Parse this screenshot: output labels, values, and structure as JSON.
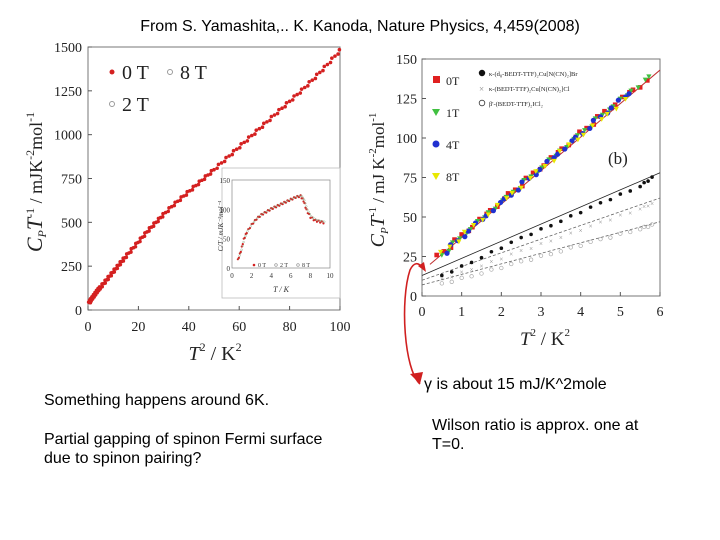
{
  "citation": "From S. Yamashita,.. K. Kanoda, Nature Physics, 4,459(2008)",
  "notes": {
    "note1": "Something happens around 6K.",
    "note2": "Partial gapping of spinon Fermi surface due to spinon pairing?",
    "note3": "γ is about 15 mJ/K^2mole",
    "note4": "Wilson ratio is approx. one at T=0."
  },
  "chart_data": [
    {
      "type": "scatter",
      "ylabel_main": "C",
      "ylabel_sub": "P",
      "ylabel_t": "T",
      "ylabel_exp": "-1",
      "ylabel_rest": " / mJK",
      "ylabel_exp2": "-2",
      "ylabel_mol": "mol",
      "ylabel_exp3": "-1",
      "xlabel_main": "T",
      "xlabel_exp": "2",
      "xlabel_rest": " / K",
      "xlabel_exp2": "2",
      "xlim": [
        0,
        100
      ],
      "ylim": [
        0,
        1500
      ],
      "xticks": [
        "0",
        "20",
        "40",
        "60",
        "80",
        "100"
      ],
      "yticks": [
        "0",
        "250",
        "500",
        "750",
        "1000",
        "1250",
        "1500"
      ],
      "legend": [
        "0 T",
        "8 T",
        "2 T"
      ],
      "colors": {
        "0T": "#d42020",
        "8T": "#9a9a9a",
        "2T": "#9a9a9a"
      },
      "series": [
        {
          "name": "0 T",
          "x": [
            0.5,
            1,
            2,
            3,
            4,
            5,
            7,
            9,
            11,
            13,
            15,
            18,
            21,
            24,
            27,
            30,
            34,
            38,
            42,
            46,
            50,
            55,
            60,
            65,
            70,
            75,
            80,
            85,
            90,
            95,
            100
          ],
          "y": [
            40,
            55,
            75,
            95,
            115,
            130,
            165,
            200,
            235,
            270,
            305,
            355,
            405,
            455,
            500,
            545,
            600,
            650,
            700,
            750,
            800,
            865,
            930,
            995,
            1060,
            1125,
            1190,
            1255,
            1325,
            1400,
            1480
          ]
        }
      ],
      "inset": {
        "type": "scatter",
        "ylabel": "C/T / mJK⁻²mol⁻¹",
        "xlabel": "T / K",
        "xlim": [
          0,
          10
        ],
        "ylim": [
          0,
          150
        ],
        "xticks": [
          "0",
          "2",
          "4",
          "6",
          "8",
          "10"
        ],
        "yticks": [
          "0",
          "50",
          "100",
          "150"
        ],
        "legend": [
          "0 T",
          "2 T",
          "8 T"
        ],
        "series": [
          {
            "name": "0 T",
            "x": [
              0.6,
              0.9,
              1.2,
              1.5,
              2.0,
              2.5,
              3.0,
              3.5,
              4.0,
              4.5,
              5.0,
              5.5,
              6.0,
              6.5,
              7.0,
              7.3,
              7.6,
              8.0,
              8.5,
              9.0,
              9.5
            ],
            "y": [
              15,
              30,
              50,
              62,
              75,
              85,
              92,
              97,
              102,
              106,
              110,
              114,
              118,
              122,
              124,
              116,
              100,
              88,
              82,
              80,
              78
            ]
          }
        ]
      }
    },
    {
      "type": "scatter",
      "ylabel_main": "C",
      "ylabel_sub": "P",
      "ylabel_t": "T",
      "ylabel_exp": "-1",
      "ylabel_rest": " / mJ K",
      "ylabel_exp2": "-2",
      "ylabel_mol": "mol",
      "ylabel_exp3": "-1",
      "xlabel_main": "T",
      "xlabel_exp": "2",
      "xlabel_rest": " / K",
      "xlabel_exp2": "2",
      "panel_label": "(b)",
      "xlim": [
        0,
        6
      ],
      "ylim": [
        0,
        150
      ],
      "xticks": [
        "0",
        "1",
        "2",
        "3",
        "4",
        "5",
        "6"
      ],
      "yticks": [
        "0",
        "25",
        "50",
        "75",
        "100",
        "125",
        "150"
      ],
      "legend": [
        "0T",
        "1T",
        "4T",
        "8T"
      ],
      "legend2": [
        "κ-(d₈-BEDT-TTF)₂Cu[N(CN)₂]Br",
        "κ-(BEDT-TTF)₂Cu[N(CN)₂]Cl",
        "β'-(BEDT-TTF)₂ICl₂"
      ],
      "colors": {
        "0T": "#e02020",
        "1T": "#40c040",
        "4T": "#2030d0",
        "8T": "#e8e800"
      },
      "series": [
        {
          "name": "0T",
          "x": [
            0.4,
            1.0,
            1.6,
            2.2,
            2.8,
            3.4,
            4.0,
            4.6,
            5.2,
            5.8
          ],
          "y": [
            25,
            38,
            51,
            64,
            77,
            90,
            103,
            116,
            128,
            138
          ]
        },
        {
          "name": "1T",
          "x": [
            0.5,
            1.1,
            1.7,
            2.3,
            2.9,
            3.5,
            4.1,
            4.7,
            5.3,
            5.9
          ],
          "y": [
            26,
            40,
            53,
            66,
            79,
            92,
            105,
            118,
            130,
            142
          ]
        },
        {
          "name": "4T",
          "x": [
            0.6,
            1.2,
            1.8,
            2.4,
            3.0,
            3.6,
            4.2,
            4.8,
            5.4
          ],
          "y": [
            28,
            42,
            55,
            68,
            81,
            94,
            107,
            120,
            132
          ]
        },
        {
          "name": "8T",
          "x": [
            0.5,
            1.3,
            2.1,
            2.9,
            3.7,
            4.5,
            5.3
          ],
          "y": [
            27,
            44,
            61,
            78,
            95,
            111,
            128
          ]
        }
      ],
      "reference_series": [
        {
          "x": [
            0.5,
            1.5,
            2.5,
            3.5,
            4.5,
            5.5,
            5.9
          ],
          "y": [
            13,
            25,
            37,
            48,
            59,
            70,
            77
          ]
        },
        {
          "x": [
            0.5,
            1.5,
            2.5,
            3.5,
            4.5,
            5.5,
            5.9
          ],
          "y": [
            11,
            20,
            29,
            38,
            47,
            56,
            60
          ]
        },
        {
          "x": [
            0.5,
            1.5,
            2.5,
            3.5,
            4.5,
            5.5,
            5.9
          ],
          "y": [
            8,
            15,
            22,
            29,
            36,
            43,
            46
          ]
        }
      ]
    }
  ]
}
